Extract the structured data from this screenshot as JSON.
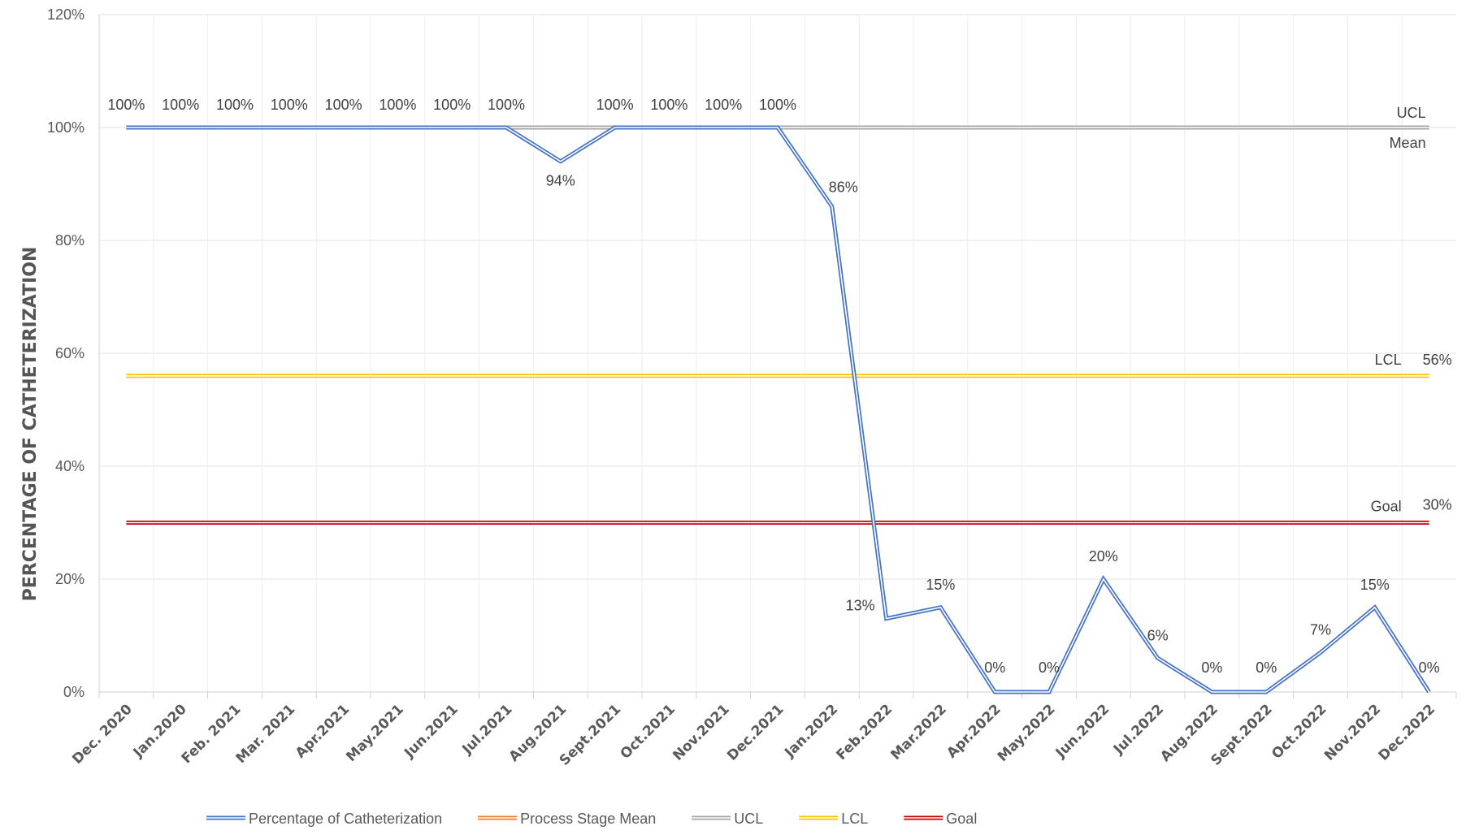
{
  "chart_data": {
    "type": "line",
    "ylabel": "PERCENTAGE OF CATHETERIZATION",
    "ylim": [
      0,
      120
    ],
    "yticks": [
      "0%",
      "20%",
      "40%",
      "60%",
      "80%",
      "100%",
      "120%"
    ],
    "grid": true,
    "legend_position": "bottom",
    "categories": [
      "Dec. 2020",
      "Jan.2020",
      "Feb. 2021",
      "Mar. 2021",
      "Apr.2021",
      "May.2021",
      "Jun.2021",
      "Jul.2021",
      "Aug.2021",
      "Sept.2021",
      "Oct.2021",
      "Nov.2021",
      "Dec.2021",
      "Jan.2022",
      "Feb.2022",
      "Mar.2022",
      "Apr.2022",
      "May.2022",
      "Jun.2022",
      "Jul.2022",
      "Aug.2022",
      "Sept.2022",
      "Oct.2022",
      "Nov.2022",
      "Dec.2022"
    ],
    "series": [
      {
        "name": "Percentage of Catheterization",
        "color": "#4472C4",
        "values": [
          100,
          100,
          100,
          100,
          100,
          100,
          100,
          100,
          94,
          100,
          100,
          100,
          100,
          86,
          13,
          15,
          0,
          0,
          20,
          6,
          0,
          0,
          7,
          15,
          0
        ],
        "data_labels": [
          "100%",
          "100%",
          "100%",
          "100%",
          "100%",
          "100%",
          "100%",
          "100%",
          "94%",
          "100%",
          "100%",
          "100%",
          "100%",
          "86%",
          "13%",
          "15%",
          "0%",
          "0%",
          "20%",
          "6%",
          "0%",
          "0%",
          "7%",
          "15%",
          "0%"
        ]
      },
      {
        "name": "Process Stage Mean",
        "color": "#ED7D31",
        "values": [
          100,
          100,
          100,
          100,
          100,
          100,
          100,
          100,
          100,
          100,
          100,
          100,
          100,
          100,
          100,
          100,
          100,
          100,
          100,
          100,
          100,
          100,
          100,
          100,
          100
        ],
        "end_label": "Mean"
      },
      {
        "name": "UCL",
        "color": "#A5A5A5",
        "values": [
          100,
          100,
          100,
          100,
          100,
          100,
          100,
          100,
          100,
          100,
          100,
          100,
          100,
          100,
          100,
          100,
          100,
          100,
          100,
          100,
          100,
          100,
          100,
          100,
          100
        ],
        "end_label": "UCL"
      },
      {
        "name": "LCL",
        "color": "#FFC000",
        "values": [
          56,
          56,
          56,
          56,
          56,
          56,
          56,
          56,
          56,
          56,
          56,
          56,
          56,
          56,
          56,
          56,
          56,
          56,
          56,
          56,
          56,
          56,
          56,
          56,
          56
        ],
        "end_label": "LCL",
        "end_value_label": "56%"
      },
      {
        "name": "Goal",
        "color": "#C00000",
        "values": [
          30,
          30,
          30,
          30,
          30,
          30,
          30,
          30,
          30,
          30,
          30,
          30,
          30,
          30,
          30,
          30,
          30,
          30,
          30,
          30,
          30,
          30,
          30,
          30,
          30
        ],
        "end_label": "Goal",
        "end_value_label": "30%"
      }
    ]
  }
}
